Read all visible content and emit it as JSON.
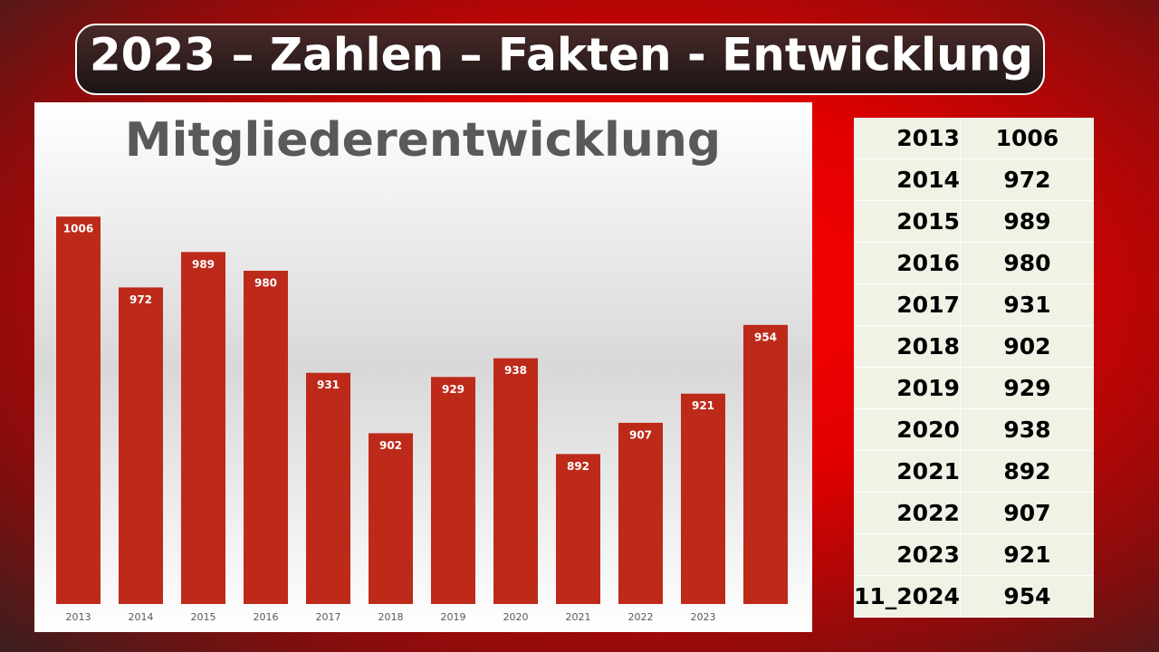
{
  "header": {
    "title": "2023 – Zahlen – Fakten - Entwicklung"
  },
  "chart_data": {
    "type": "bar",
    "title": "Mitgliederentwicklung",
    "categories": [
      "2013",
      "2014",
      "2015",
      "2016",
      "2017",
      "2018",
      "2019",
      "2020",
      "2021",
      "2022",
      "2023",
      null
    ],
    "values": [
      1006,
      972,
      989,
      980,
      931,
      902,
      929,
      938,
      892,
      907,
      921,
      954
    ],
    "color": "#bd2a1a",
    "ylim": [
      820,
      1020
    ]
  },
  "table": {
    "rows": [
      [
        2013,
        1006
      ],
      [
        2014,
        972
      ],
      [
        2015,
        989
      ],
      [
        2016,
        980
      ],
      [
        2017,
        931
      ],
      [
        2018,
        902
      ],
      [
        2019,
        929
      ],
      [
        2020,
        938
      ],
      [
        2021,
        892
      ],
      [
        2022,
        907
      ],
      [
        2023,
        921
      ],
      [
        "11_2024",
        954
      ]
    ]
  }
}
